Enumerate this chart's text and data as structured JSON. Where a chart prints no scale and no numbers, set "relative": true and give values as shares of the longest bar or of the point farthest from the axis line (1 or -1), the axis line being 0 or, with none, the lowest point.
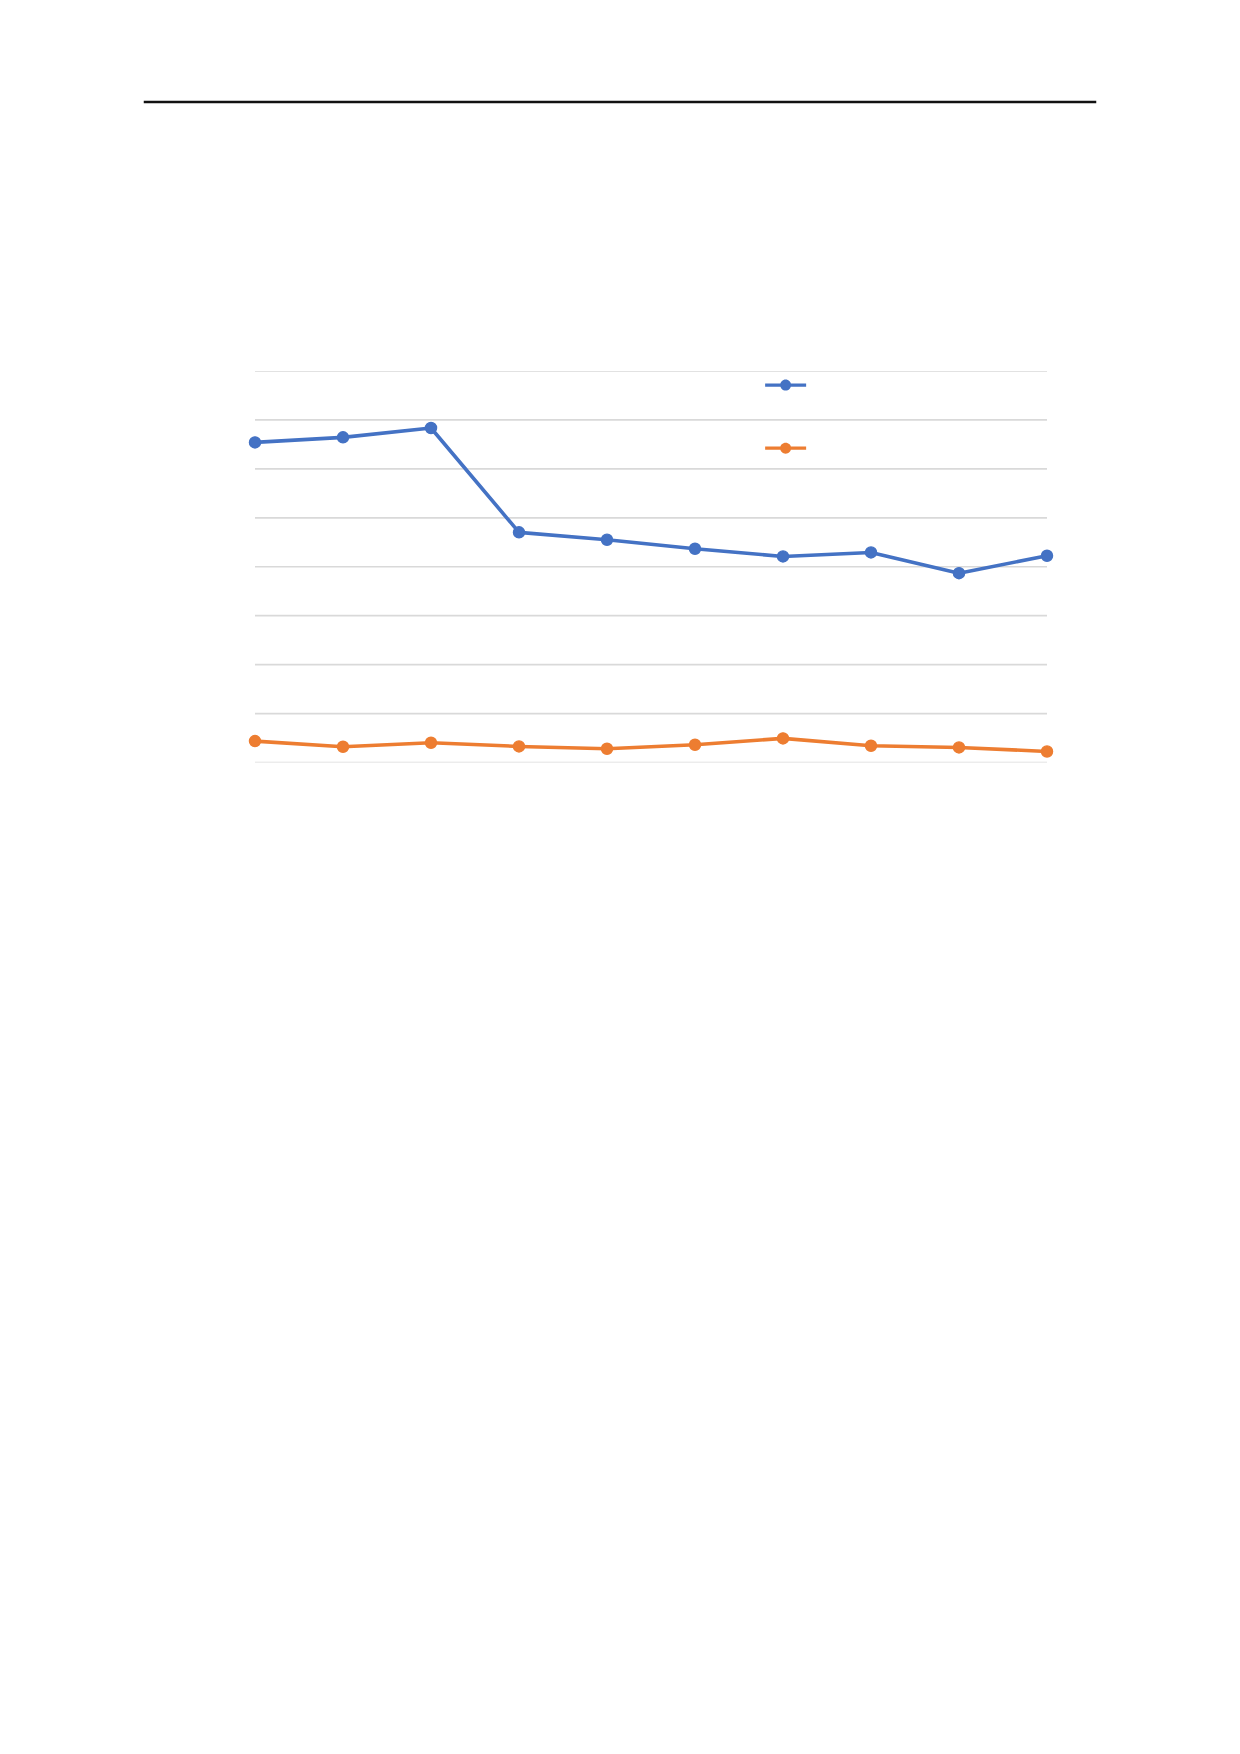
{
  "chart_data": {
    "type": "line",
    "relative": true,
    "categories": [
      null,
      null,
      null,
      null,
      null,
      null,
      null,
      null,
      null,
      null
    ],
    "series": [
      {
        "color": "#4472c4",
        "values": [
          0.957,
          0.972,
          1.0,
          0.688,
          0.666,
          0.639,
          0.616,
          0.628,
          0.566,
          0.618
        ]
      },
      {
        "color": "#ed7d31",
        "values": [
          0.064,
          0.047,
          0.059,
          0.048,
          0.041,
          0.053,
          0.072,
          0.05,
          0.045,
          0.033
        ]
      }
    ],
    "marker": "circle",
    "line_style": "solid",
    "grid": "y"
  }
}
